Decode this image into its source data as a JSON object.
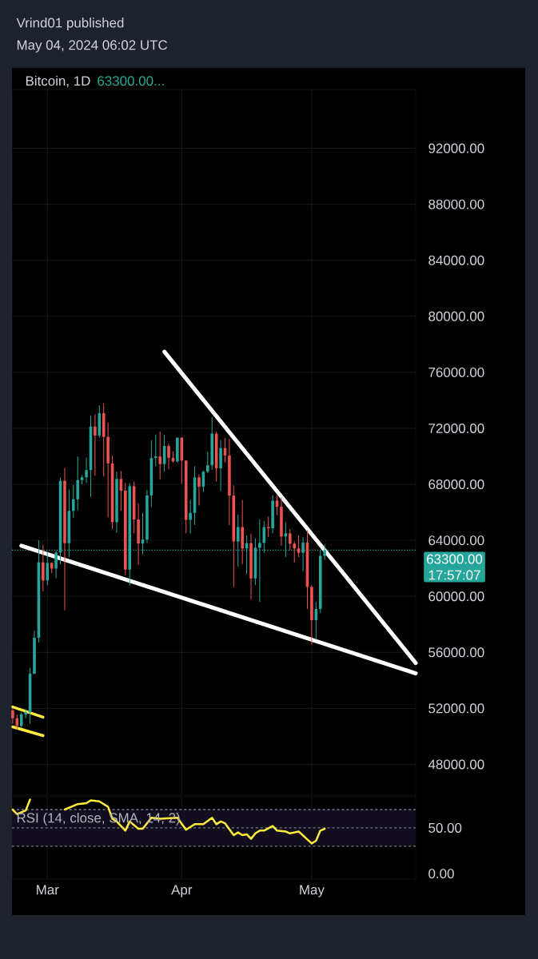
{
  "chart_data": [
    {
      "type": "candlestick",
      "title": "Bitcoin, 1D",
      "subtitle": "63300.00...",
      "annotations": [
        "Vrind01 published",
        "May 04, 2024 06:02 UTC",
        "17:57:07"
      ],
      "x": [
        "2024-02-22",
        "2024-02-23",
        "2024-02-24",
        "2024-02-25",
        "2024-02-26",
        "2024-02-27",
        "2024-02-28",
        "2024-02-29",
        "2024-03-01",
        "2024-03-02",
        "2024-03-03",
        "2024-03-04",
        "2024-03-05",
        "2024-03-06",
        "2024-03-07",
        "2024-03-08",
        "2024-03-09",
        "2024-03-10",
        "2024-03-11",
        "2024-03-12",
        "2024-03-13",
        "2024-03-14",
        "2024-03-15",
        "2024-03-16",
        "2024-03-17",
        "2024-03-18",
        "2024-03-19",
        "2024-03-20",
        "2024-03-21",
        "2024-03-22",
        "2024-03-23",
        "2024-03-24",
        "2024-03-25",
        "2024-03-26",
        "2024-03-27",
        "2024-03-28",
        "2024-03-29",
        "2024-03-30",
        "2024-03-31",
        "2024-04-01",
        "2024-04-02",
        "2024-04-03",
        "2024-04-04",
        "2024-04-05",
        "2024-04-06",
        "2024-04-07",
        "2024-04-08",
        "2024-04-09",
        "2024-04-10",
        "2024-04-11",
        "2024-04-12",
        "2024-04-13",
        "2024-04-14",
        "2024-04-15",
        "2024-04-16",
        "2024-04-17",
        "2024-04-18",
        "2024-04-19",
        "2024-04-20",
        "2024-04-21",
        "2024-04-22",
        "2024-04-23",
        "2024-04-24",
        "2024-04-25",
        "2024-04-26",
        "2024-04-27",
        "2024-04-28",
        "2024-04-29",
        "2024-04-30",
        "2024-05-01",
        "2024-05-02",
        "2024-05-03",
        "2024-05-04"
      ],
      "ohlc": [
        [
          51850,
          52000,
          50900,
          51300
        ],
        [
          51300,
          51550,
          50500,
          50750
        ],
        [
          50750,
          51700,
          50580,
          51570
        ],
        [
          51570,
          51950,
          51280,
          51730
        ],
        [
          51730,
          54900,
          50900,
          54480
        ],
        [
          54480,
          57550,
          54450,
          57040
        ],
        [
          57040,
          64000,
          56700,
          62430
        ],
        [
          62430,
          63680,
          60360,
          61130
        ],
        [
          61130,
          63170,
          60780,
          62390
        ],
        [
          62390,
          62430,
          61650,
          61990
        ],
        [
          61990,
          63230,
          61300,
          63130
        ],
        [
          63130,
          68500,
          62300,
          68250
        ],
        [
          68250,
          69170,
          59000,
          63800
        ],
        [
          63800,
          67640,
          62800,
          66110
        ],
        [
          66110,
          67980,
          65600,
          66930
        ],
        [
          66930,
          70000,
          66150,
          68300
        ],
        [
          68300,
          68670,
          68000,
          68500
        ],
        [
          68500,
          69900,
          68100,
          69020
        ],
        [
          69020,
          72900,
          67100,
          72130
        ],
        [
          72130,
          73000,
          68620,
          71480
        ],
        [
          71480,
          73650,
          71330,
          73080
        ],
        [
          73080,
          73780,
          68550,
          71390
        ],
        [
          71390,
          72420,
          65630,
          69500
        ],
        [
          69500,
          70050,
          64800,
          65300
        ],
        [
          65300,
          68900,
          64540,
          68390
        ],
        [
          68390,
          68950,
          66100,
          67550
        ],
        [
          67550,
          68100,
          61500,
          61910
        ],
        [
          61910,
          68100,
          60770,
          67860
        ],
        [
          67860,
          68200,
          64500,
          65490
        ],
        [
          65490,
          66650,
          62260,
          63780
        ],
        [
          63780,
          65970,
          63000,
          64060
        ],
        [
          64060,
          67600,
          63800,
          67210
        ],
        [
          67210,
          71150,
          66380,
          69880
        ],
        [
          69880,
          71560,
          69280,
          69990
        ],
        [
          69990,
          71770,
          68360,
          69450
        ],
        [
          69450,
          71550,
          68900,
          70740
        ],
        [
          70740,
          70900,
          69080,
          69890
        ],
        [
          69890,
          70350,
          69550,
          69640
        ],
        [
          69640,
          71370,
          69560,
          71330
        ],
        [
          71330,
          71340,
          68060,
          69700
        ],
        [
          69700,
          69700,
          64500,
          65460
        ],
        [
          65460,
          66900,
          64490,
          65960
        ],
        [
          65960,
          69300,
          65100,
          68500
        ],
        [
          68500,
          68720,
          66500,
          67840
        ],
        [
          67840,
          69000,
          67450,
          68900
        ],
        [
          68900,
          70330,
          68800,
          69360
        ],
        [
          69360,
          72800,
          69040,
          71620
        ],
        [
          71620,
          71760,
          68200,
          69150
        ],
        [
          69150,
          71170,
          67520,
          70590
        ],
        [
          70590,
          71300,
          69570,
          70060
        ],
        [
          70060,
          71250,
          65090,
          67190
        ],
        [
          67190,
          67930,
          60660,
          63920
        ],
        [
          63920,
          65840,
          62130,
          64950
        ],
        [
          64950,
          66880,
          62300,
          63420
        ],
        [
          63420,
          64360,
          61600,
          63800
        ],
        [
          63800,
          64490,
          59770,
          61280
        ],
        [
          61280,
          64130,
          60800,
          63470
        ],
        [
          63470,
          65500,
          59600,
          63820
        ],
        [
          63820,
          65400,
          63100,
          64950
        ],
        [
          64950,
          65700,
          64240,
          64860
        ],
        [
          64860,
          67230,
          64500,
          66840
        ],
        [
          66840,
          67200,
          65800,
          66400
        ],
        [
          66400,
          67080,
          63600,
          64280
        ],
        [
          64280,
          65290,
          62800,
          64500
        ],
        [
          64500,
          64800,
          63300,
          63760
        ],
        [
          63760,
          63920,
          62400,
          63420
        ],
        [
          63420,
          64350,
          62800,
          63110
        ],
        [
          63110,
          64230,
          61800,
          63840
        ],
        [
          63840,
          64730,
          59100,
          60670
        ],
        [
          60670,
          60780,
          56550,
          58300
        ],
        [
          58300,
          59600,
          56900,
          59100
        ],
        [
          59100,
          63330,
          58800,
          62890
        ],
        [
          62890,
          63700,
          62600,
          63300
        ]
      ],
      "colors": [
        "#ef5350",
        "#ef5350",
        "#26a69a",
        "#26a69a",
        "#26a69a",
        "#26a69a",
        "#26a69a",
        "#ef5350",
        "#26a69a",
        "#ef5350",
        "#26a69a",
        "#26a69a",
        "#ef5350",
        "#26a69a",
        "#26a69a",
        "#26a69a",
        "#26a69a",
        "#26a69a",
        "#26a69a",
        "#ef5350",
        "#26a69a",
        "#ef5350",
        "#ef5350",
        "#ef5350",
        "#26a69a",
        "#ef5350",
        "#ef5350",
        "#26a69a",
        "#ef5350",
        "#ef5350",
        "#26a69a",
        "#26a69a",
        "#26a69a",
        "#26a69a",
        "#ef5350",
        "#26a69a",
        "#ef5350",
        "#ef5350",
        "#26a69a",
        "#ef5350",
        "#ef5350",
        "#26a69a",
        "#26a69a",
        "#ef5350",
        "#26a69a",
        "#26a69a",
        "#26a69a",
        "#ef5350",
        "#26a69a",
        "#ef5350",
        "#ef5350",
        "#ef5350",
        "#26a69a",
        "#ef5350",
        "#26a69a",
        "#ef5350",
        "#26a69a",
        "#26a69a",
        "#26a69a",
        "#ef5350",
        "#26a69a",
        "#ef5350",
        "#ef5350",
        "#26a69a",
        "#ef5350",
        "#ef5350",
        "#ef5350",
        "#26a69a",
        "#ef5350",
        "#ef5350",
        "#26a69a",
        "#26a69a",
        "#26a69a"
      ],
      "series": [
        {
          "type": "line",
          "color": "#ffffff",
          "x": [
            "2024-03-28",
            "2024-05-25"
          ],
          "values": [
            77470,
            55240
          ]
        },
        {
          "type": "line",
          "color": "#ffffff",
          "x": [
            "2024-02-24",
            "2024-05-25"
          ],
          "values": [
            63620,
            54500
          ]
        },
        {
          "type": "line",
          "color": "#ffeb3b",
          "x": [
            "2024-02-22",
            "2024-02-29"
          ],
          "values": [
            52100,
            51370
          ]
        },
        {
          "type": "line",
          "color": "#ffeb3b",
          "x": [
            "2024-02-22",
            "2024-02-29"
          ],
          "values": [
            50680,
            50050
          ]
        }
      ],
      "xlim": [
        "2024-02-21T20:00",
        "2024-05-25"
      ],
      "ylim": [
        45800,
        96200
      ],
      "xticks": [
        {
          "value": "2024-03-01",
          "label": null
        },
        {
          "value": "2024-04-01",
          "label": null
        },
        {
          "value": "2024-05-01",
          "label": null
        }
      ],
      "yticks": [
        {
          "value": 48000,
          "label": "48000.00"
        },
        {
          "value": 52000,
          "label": "52000.00"
        },
        {
          "value": 56000,
          "label": "56000.00"
        },
        {
          "value": 60000,
          "label": "60000.00"
        },
        {
          "value": 64000,
          "label": "64000.00"
        },
        {
          "value": 68000,
          "label": "68000.00"
        },
        {
          "value": 72000,
          "label": "72000.00"
        },
        {
          "value": 76000,
          "label": "76000.00"
        },
        {
          "value": 80000,
          "label": "80000.00"
        },
        {
          "value": 84000,
          "label": "84000.00"
        },
        {
          "value": 88000,
          "label": "88000.00"
        },
        {
          "value": 92000,
          "label": "92000.00"
        }
      ],
      "grid": true,
      "tick_labels": "y",
      "ref_lines": [
        {
          "axis": "y",
          "value": 63300,
          "label": "63300.00",
          "color": "#26a69a",
          "line_style": "dotted"
        }
      ]
    },
    {
      "type": "line",
      "title": "RSI (14, close, SMA, 14, 2)",
      "color": "#ffeb3b",
      "x": [
        "2024-02-22",
        "2024-02-23",
        "2024-02-25",
        "2024-02-26",
        "2024-03-01",
        "2024-03-05",
        "2024-03-08",
        "2024-03-10",
        "2024-03-11",
        "2024-03-13",
        "2024-03-15",
        "2024-03-16",
        "2024-03-17",
        "2024-03-19",
        "2024-03-20",
        "2024-03-22",
        "2024-03-23",
        "2024-03-25",
        "2024-03-27",
        "2024-03-31",
        "2024-04-02",
        "2024-04-04",
        "2024-04-06",
        "2024-04-08",
        "2024-04-09",
        "2024-04-10",
        "2024-04-11",
        "2024-04-13",
        "2024-04-14",
        "2024-04-15",
        "2024-04-16",
        "2024-04-17",
        "2024-04-18",
        "2024-04-19",
        "2024-04-20",
        "2024-04-22",
        "2024-04-23",
        "2024-04-25",
        "2024-04-26",
        "2024-04-28",
        "2024-05-01",
        "2024-05-02",
        "2024-05-03",
        "2024-05-04"
      ],
      "values": [
        70,
        65,
        69,
        81,
        null,
        70,
        76,
        77,
        80,
        79,
        73,
        60,
        57,
        47,
        57,
        49,
        49,
        61,
        60,
        61,
        48,
        54,
        54,
        61,
        54,
        57,
        55,
        42,
        45,
        42,
        43,
        38,
        44,
        47,
        47,
        52,
        47,
        46,
        44,
        46,
        33,
        36,
        47,
        49
      ],
      "xlim": [
        "2024-02-21T20:00",
        "2024-05-25"
      ],
      "ylim": [
        -6,
        84
      ],
      "xticks": [
        {
          "value": "2024-03-01",
          "label": "Mar"
        },
        {
          "value": "2024-04-01",
          "label": "Apr"
        },
        {
          "value": "2024-05-01",
          "label": "May"
        }
      ],
      "yticks": [
        {
          "value": 0,
          "label": "0.00"
        },
        {
          "value": 50,
          "label": "50.00"
        }
      ],
      "grid": "x",
      "ref_lines": [
        {
          "axis": "y",
          "value": 70,
          "color": "#787b86",
          "line_style": "dashed"
        },
        {
          "axis": "y",
          "value": 50,
          "color": "#787b86",
          "line_style": "dashed"
        },
        {
          "axis": "y",
          "value": 30,
          "color": "#787b86",
          "line_style": "dashed"
        }
      ],
      "bands": [
        {
          "axis": "y",
          "from": 30,
          "to": 70,
          "color": "#120e1e"
        }
      ]
    }
  ]
}
